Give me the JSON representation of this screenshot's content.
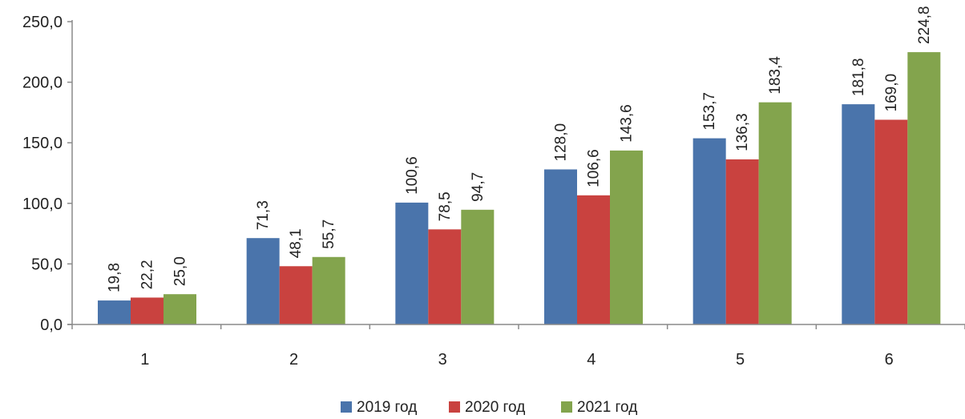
{
  "chart_data": {
    "type": "bar",
    "categories": [
      "1",
      "2",
      "3",
      "4",
      "5",
      "6"
    ],
    "series": [
      {
        "name": "2019 год",
        "color": "#4a74ab",
        "values": [
          19.8,
          71.3,
          100.6,
          128.0,
          153.7,
          181.8
        ],
        "labels": [
          "19,8",
          "71,3",
          "100,6",
          "128,0",
          "153,7",
          "181,8"
        ]
      },
      {
        "name": "2020 год",
        "color": "#c9423f",
        "values": [
          22.2,
          48.1,
          78.5,
          106.6,
          136.3,
          169.0
        ],
        "labels": [
          "22,2",
          "48,1",
          "78,5",
          "106,6",
          "136,3",
          "169,0"
        ]
      },
      {
        "name": "2021 год",
        "color": "#83a44d",
        "values": [
          25.0,
          55.7,
          94.7,
          143.6,
          183.4,
          224.8
        ],
        "labels": [
          "25,0",
          "55,7",
          "94,7",
          "143,6",
          "183,4",
          "224,8"
        ]
      }
    ],
    "ylim": [
      0,
      250
    ],
    "yticks": [
      0,
      50,
      100,
      150,
      200,
      250
    ],
    "ytick_labels": [
      "0,0",
      "50,0",
      "100,0",
      "150,0",
      "200,0",
      "250,0"
    ],
    "grid": false,
    "legend": "bottom-center",
    "title": "",
    "xlabel": "",
    "ylabel": ""
  }
}
